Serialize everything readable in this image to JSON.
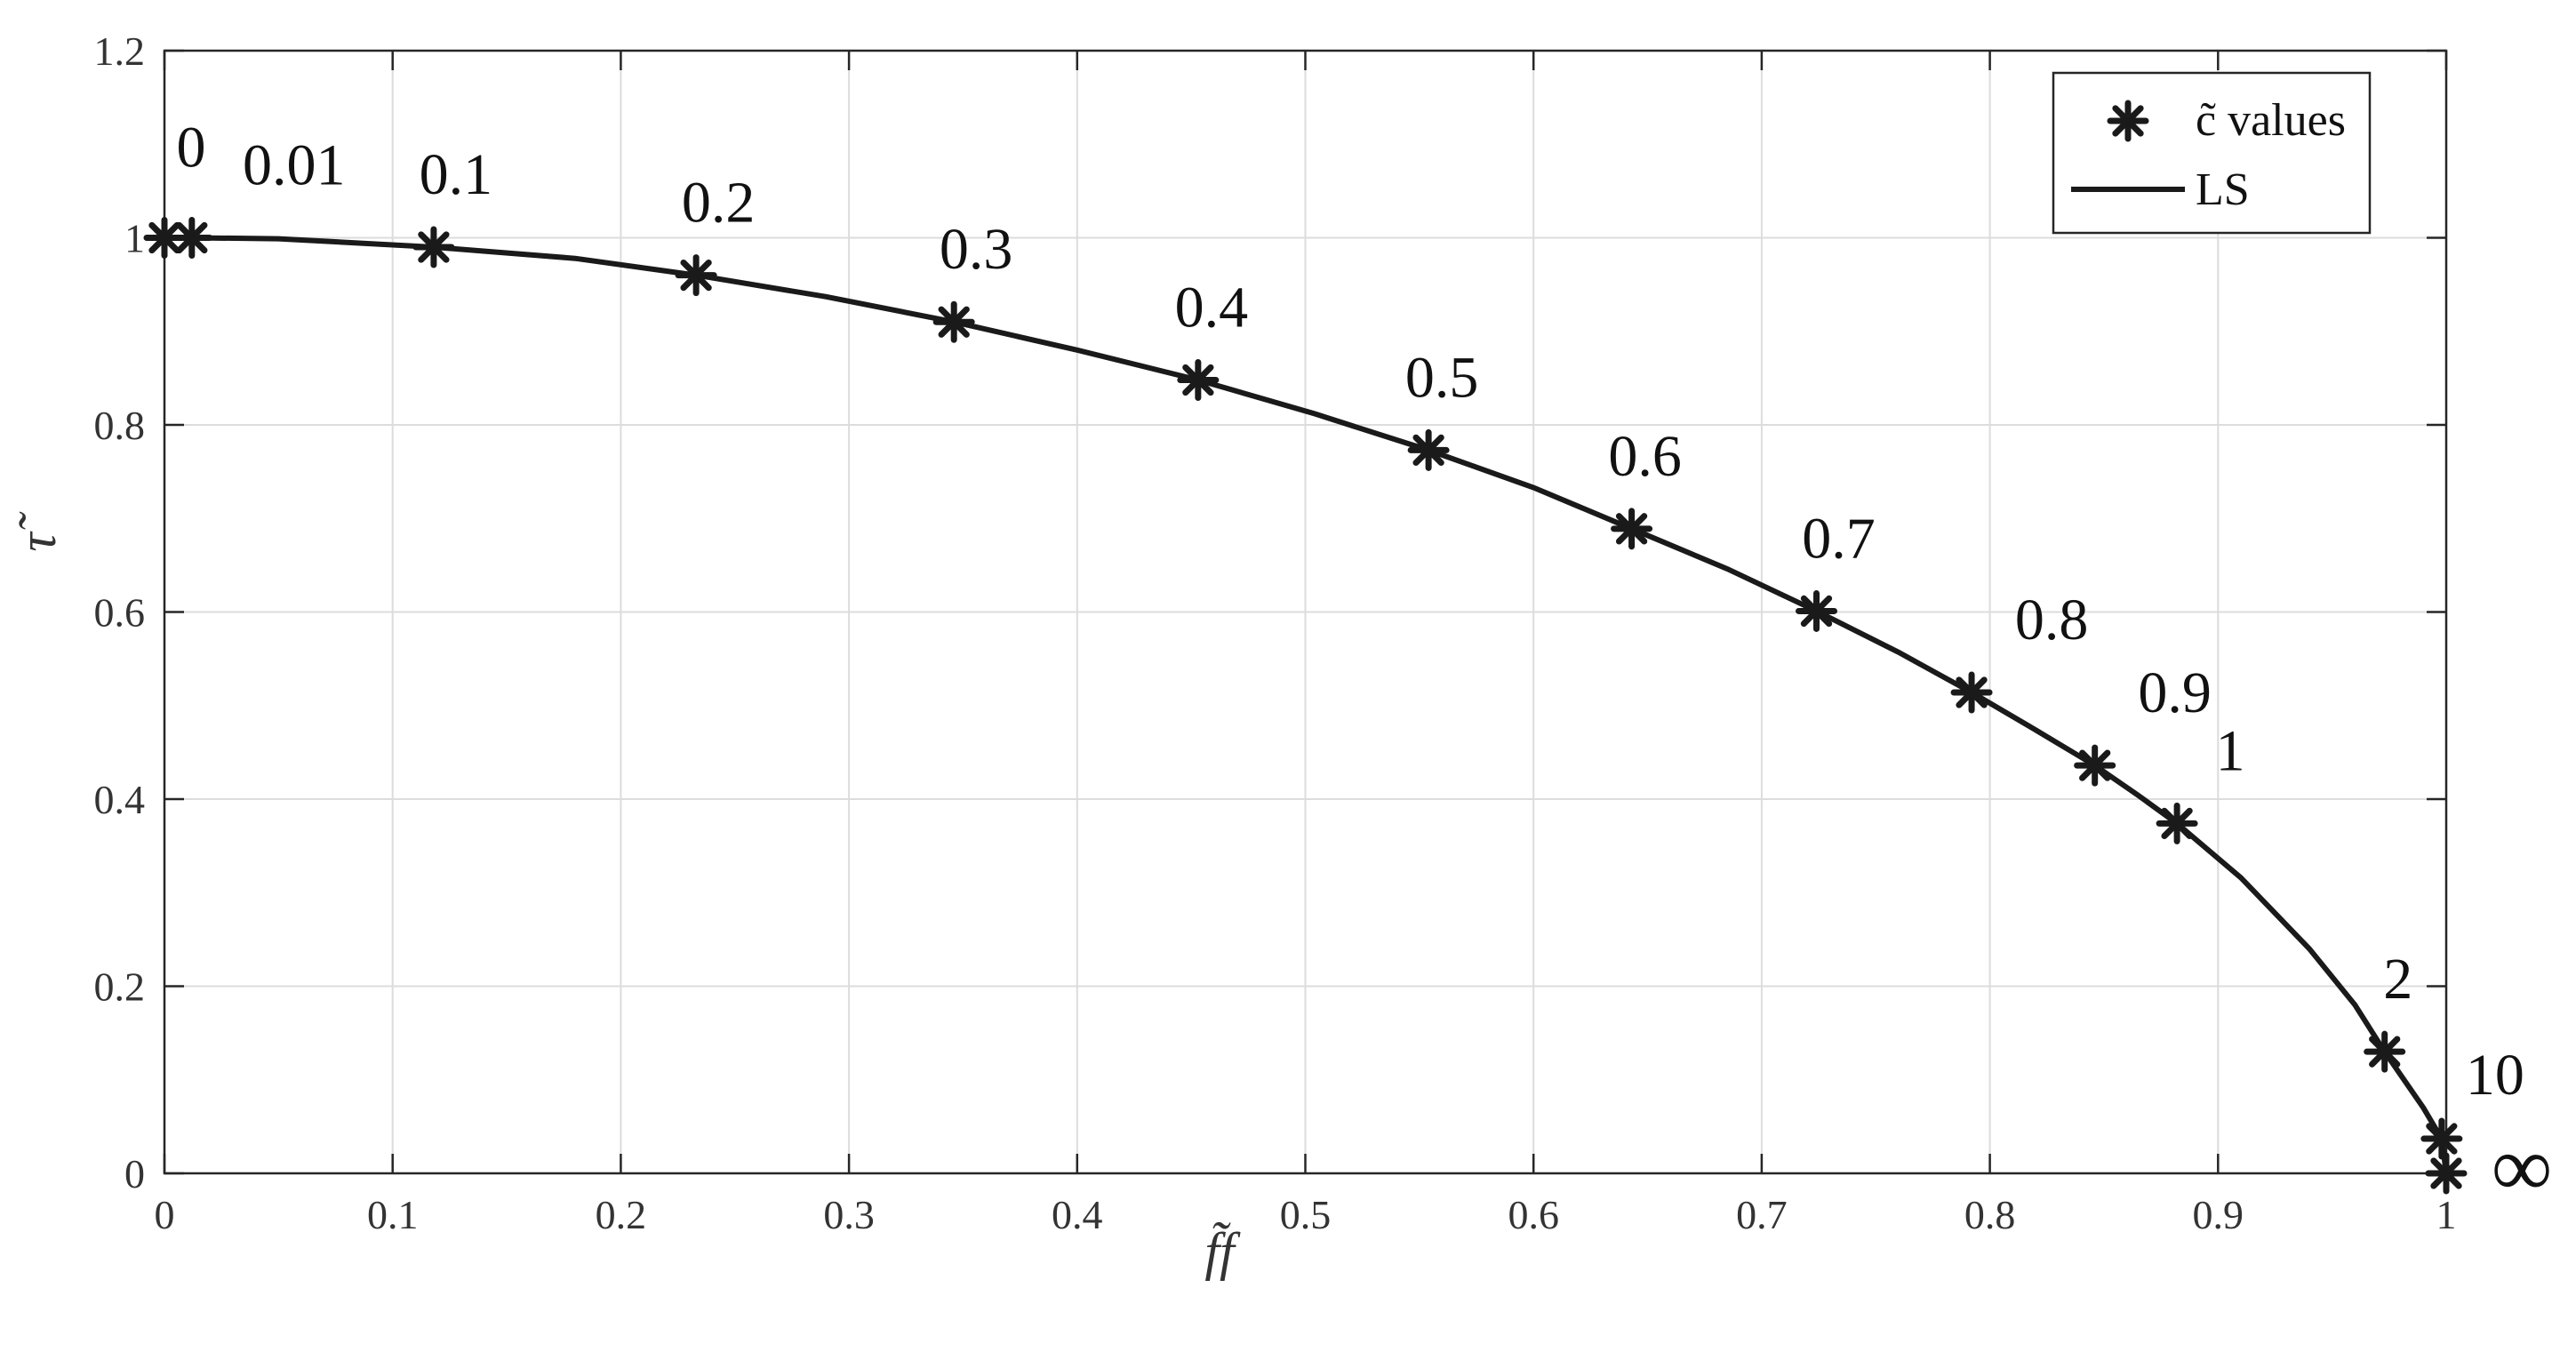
{
  "chart_data": {
    "type": "scatter",
    "title": "",
    "xlabel": "f̃f",
    "ylabel": "τ̃",
    "xlim": [
      0,
      1
    ],
    "ylim": [
      0,
      1.2
    ],
    "xticks": [
      "0",
      "0.1",
      "0.2",
      "0.3",
      "0.4",
      "0.5",
      "0.6",
      "0.7",
      "0.8",
      "0.9",
      "1"
    ],
    "yticks": [
      "0",
      "0.2",
      "0.4",
      "0.6",
      "0.8",
      "1",
      "1.2"
    ],
    "grid": true,
    "legend_position": "top-right",
    "series": [
      {
        "name": "c̃ values",
        "kind": "markers",
        "marker": "asterisk",
        "color": "#1a1a1a",
        "points": [
          {
            "x": 0.0,
            "y": 1.0,
            "label": "0"
          },
          {
            "x": 0.012,
            "y": 1.0,
            "label": "0.01"
          },
          {
            "x": 0.118,
            "y": 0.99,
            "label": "0.1"
          },
          {
            "x": 0.233,
            "y": 0.96,
            "label": "0.2"
          },
          {
            "x": 0.346,
            "y": 0.91,
            "label": "0.3"
          },
          {
            "x": 0.453,
            "y": 0.848,
            "label": "0.4"
          },
          {
            "x": 0.554,
            "y": 0.773,
            "label": "0.5"
          },
          {
            "x": 0.643,
            "y": 0.689,
            "label": "0.6"
          },
          {
            "x": 0.724,
            "y": 0.601,
            "label": "0.7"
          },
          {
            "x": 0.792,
            "y": 0.514,
            "label": "0.8"
          },
          {
            "x": 0.846,
            "y": 0.436,
            "label": "0.9"
          },
          {
            "x": 0.882,
            "y": 0.374,
            "label": "1"
          },
          {
            "x": 0.973,
            "y": 0.13,
            "label": "2"
          },
          {
            "x": 0.998,
            "y": 0.037,
            "label": "10"
          },
          {
            "x": 1.0,
            "y": 0.0,
            "label": "∞"
          }
        ]
      },
      {
        "name": "LS",
        "kind": "line",
        "color": "#1a1a1a",
        "x": [
          0.0,
          0.012,
          0.05,
          0.118,
          0.18,
          0.233,
          0.29,
          0.346,
          0.4,
          0.453,
          0.504,
          0.554,
          0.6,
          0.643,
          0.685,
          0.724,
          0.76,
          0.792,
          0.82,
          0.846,
          0.865,
          0.882,
          0.91,
          0.94,
          0.96,
          0.973,
          0.99,
          0.998,
          1.0
        ],
        "y": [
          1.0,
          1.0,
          0.999,
          0.99,
          0.978,
          0.96,
          0.937,
          0.91,
          0.88,
          0.848,
          0.812,
          0.773,
          0.733,
          0.689,
          0.646,
          0.601,
          0.557,
          0.514,
          0.474,
          0.436,
          0.404,
          0.374,
          0.316,
          0.24,
          0.18,
          0.13,
          0.07,
          0.037,
          0.0
        ]
      }
    ]
  },
  "colors": {
    "marker": "#1a1a1a",
    "line": "#1a1a1a",
    "grid": "#dcdcdc",
    "axis": "#262626",
    "background": "#ffffff"
  }
}
